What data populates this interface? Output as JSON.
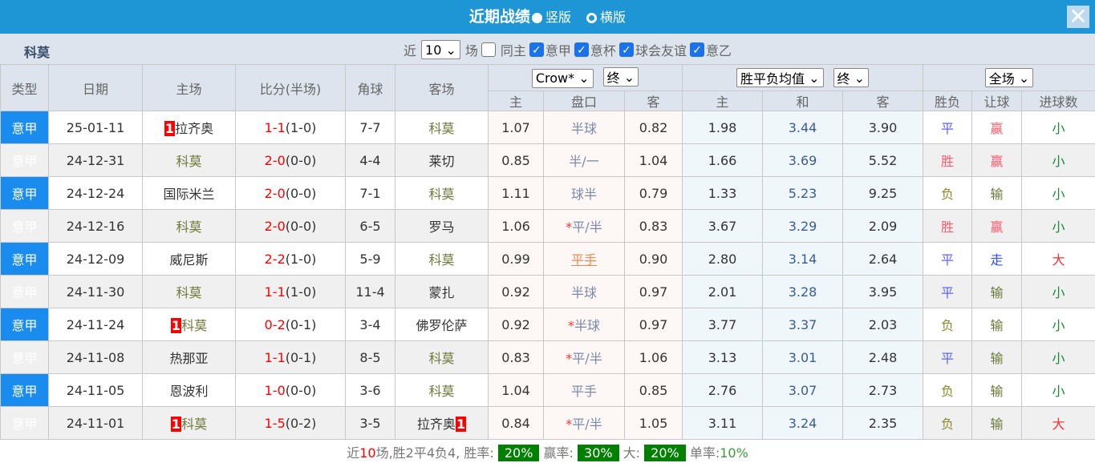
{
  "header": {
    "title": "近期战绩",
    "option_vertical": "竖版",
    "option_horizontal": "横版"
  },
  "team": "科莫",
  "filters": {
    "prefix": "近",
    "count": "10",
    "suffix": "场",
    "same_home": "同主",
    "leagues": [
      "意甲",
      "意杯",
      "球会友谊",
      "意乙"
    ]
  },
  "columns": {
    "type": "类型",
    "date": "日期",
    "home": "主场",
    "score": "比分(半场)",
    "corner": "角球",
    "away": "客场",
    "odds_company": "Crow*",
    "odds_stage": "终",
    "avg": "胜平负均值",
    "avg_stage": "终",
    "range": "全场",
    "sub": [
      "主",
      "盘口",
      "客",
      "主",
      "和",
      "客",
      "胜负",
      "让球",
      "进球数"
    ]
  },
  "rows": [
    {
      "type": "意甲",
      "date": "25-01-11",
      "home_badge": "1",
      "home": "拉齐奥",
      "score": "1-1",
      "half": "(1-0)",
      "corner": "7-7",
      "away": "科莫",
      "o1": "1.07",
      "line": "半球",
      "o2": "0.82",
      "w": "1.98",
      "d": "3.44",
      "l": "3.90",
      "res": "平",
      "hcp": "赢",
      "ou": "小"
    },
    {
      "type": "意甲",
      "date": "24-12-31",
      "home": "科莫",
      "score": "2-0",
      "half": "(0-0)",
      "corner": "4-4",
      "away": "莱切",
      "o1": "0.85",
      "line": "半/一",
      "o2": "1.04",
      "w": "1.66",
      "d": "3.69",
      "l": "5.52",
      "res": "胜",
      "hcp": "赢",
      "ou": "小"
    },
    {
      "type": "意甲",
      "date": "24-12-24",
      "home": "国际米兰",
      "score": "2-0",
      "half": "(0-0)",
      "corner": "7-1",
      "away": "科莫",
      "o1": "1.11",
      "line": "球半",
      "o2": "0.79",
      "w": "1.33",
      "d": "5.23",
      "l": "9.25",
      "res": "负",
      "hcp": "输",
      "ou": "小"
    },
    {
      "type": "意甲",
      "date": "24-12-16",
      "home": "科莫",
      "score": "2-0",
      "half": "(0-0)",
      "corner": "6-5",
      "away": "罗马",
      "o1": "1.06",
      "line_star": "*",
      "line": "平/半",
      "o2": "0.83",
      "w": "3.67",
      "d": "3.29",
      "l": "2.09",
      "res": "胜",
      "hcp": "赢",
      "ou": "小"
    },
    {
      "type": "意甲",
      "date": "24-12-09",
      "home": "威尼斯",
      "score": "2-2",
      "half": "(1-0)",
      "corner": "5-9",
      "away": "科莫",
      "o1": "0.99",
      "line": "平手",
      "o2": "0.90",
      "w": "2.80",
      "d": "3.14",
      "l": "2.64",
      "res": "平",
      "hcp": "走",
      "ou": "大"
    },
    {
      "type": "意甲",
      "date": "24-11-30",
      "home": "科莫",
      "score": "1-1",
      "half": "(1-0)",
      "corner": "11-4",
      "away": "蒙扎",
      "o1": "0.92",
      "line": "半球",
      "o2": "0.97",
      "w": "2.01",
      "d": "3.28",
      "l": "3.95",
      "res": "平",
      "hcp": "输",
      "ou": "小"
    },
    {
      "type": "意甲",
      "date": "24-11-24",
      "home_badge": "1",
      "home": "科莫",
      "score": "0-2",
      "half": "(0-1)",
      "corner": "3-4",
      "away": "佛罗伦萨",
      "o1": "0.92",
      "line_star": "*",
      "line": "半球",
      "o2": "0.97",
      "w": "3.77",
      "d": "3.37",
      "l": "2.03",
      "res": "负",
      "hcp": "输",
      "ou": "小"
    },
    {
      "type": "意甲",
      "date": "24-11-08",
      "home": "热那亚",
      "score": "1-1",
      "half": "(0-1)",
      "corner": "8-5",
      "away": "科莫",
      "o1": "0.83",
      "line_star": "*",
      "line": "平/半",
      "o2": "1.06",
      "w": "3.13",
      "d": "3.01",
      "l": "2.48",
      "res": "平",
      "hcp": "输",
      "ou": "小"
    },
    {
      "type": "意甲",
      "date": "24-11-05",
      "home": "恩波利",
      "score": "1-0",
      "half": "(0-0)",
      "corner": "3-6",
      "away": "科莫",
      "o1": "1.04",
      "line": "平手",
      "o2": "0.85",
      "w": "2.76",
      "d": "3.07",
      "l": "2.73",
      "res": "负",
      "hcp": "输",
      "ou": "小"
    },
    {
      "type": "意甲",
      "date": "24-11-01",
      "home_badge": "1",
      "home": "科莫",
      "score": "1-5",
      "half": "(0-2)",
      "corner": "3-5",
      "away": "拉齐奥",
      "away_badge": "1",
      "o1": "0.84",
      "line_star": "*",
      "line": "平/半",
      "o2": "1.05",
      "w": "3.11",
      "d": "3.24",
      "l": "2.35",
      "res": "负",
      "hcp": "输",
      "ou": "大"
    }
  ],
  "summary": {
    "p1": "近",
    "n": "10",
    "p2": "场,胜2平4负4, 胜率:",
    "win_rate": "20%",
    "l2": "赢率:",
    "hcp_rate": "30%",
    "l3": "大:",
    "over_rate": "20%",
    "l4": "单率:",
    "odd_rate": "10%"
  }
}
